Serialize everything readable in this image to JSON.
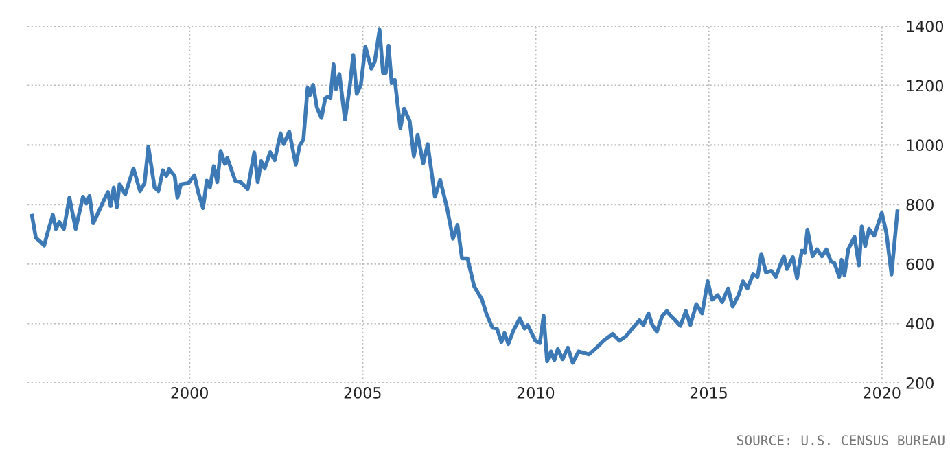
{
  "chart_data": {
    "type": "line",
    "x": [
      1995.45,
      1995.56,
      1995.72,
      1995.8,
      1995.9,
      1996.05,
      1996.14,
      1996.24,
      1996.37,
      1996.53,
      1996.71,
      1996.92,
      1997.02,
      1997.11,
      1997.22,
      1997.48,
      1997.64,
      1997.72,
      1997.81,
      1997.9,
      1997.98,
      1998.14,
      1998.38,
      1998.57,
      1998.7,
      1998.81,
      1998.99,
      1999.1,
      1999.23,
      1999.33,
      1999.41,
      1999.57,
      1999.65,
      1999.75,
      1999.97,
      2000.14,
      2000.25,
      2000.39,
      2000.5,
      2000.59,
      2000.7,
      2000.8,
      2000.9,
      2001.02,
      2001.09,
      2001.32,
      2001.48,
      2001.68,
      2001.87,
      2001.97,
      2002.07,
      2002.17,
      2002.33,
      2002.46,
      2002.63,
      2002.72,
      2002.88,
      2003.07,
      2003.18,
      2003.29,
      2003.41,
      2003.48,
      2003.57,
      2003.68,
      2003.81,
      2003.92,
      2003.99,
      2004.07,
      2004.16,
      2004.23,
      2004.33,
      2004.49,
      2004.62,
      2004.73,
      2004.83,
      2004.95,
      2005.08,
      2005.25,
      2005.35,
      2005.49,
      2005.59,
      2005.67,
      2005.75,
      2005.84,
      2005.93,
      2006.09,
      2006.2,
      2006.36,
      2006.48,
      2006.59,
      2006.75,
      2006.88,
      2007.09,
      2007.24,
      2007.44,
      2007.61,
      2007.74,
      2007.87,
      2008.03,
      2008.22,
      2008.45,
      2008.58,
      2008.75,
      2008.88,
      2009.01,
      2009.1,
      2009.21,
      2009.36,
      2009.54,
      2009.68,
      2009.77,
      2009.99,
      2010.12,
      2010.23,
      2010.33,
      2010.44,
      2010.54,
      2010.64,
      2010.78,
      2010.93,
      2011.07,
      2011.24,
      2011.54,
      2011.8,
      2011.96,
      2012.22,
      2012.42,
      2012.61,
      2012.88,
      2013.0,
      2013.11,
      2013.26,
      2013.37,
      2013.5,
      2013.66,
      2013.79,
      2013.9,
      2014.03,
      2014.18,
      2014.34,
      2014.47,
      2014.64,
      2014.81,
      2014.97,
      2015.1,
      2015.26,
      2015.39,
      2015.56,
      2015.69,
      2015.86,
      2015.99,
      2016.12,
      2016.28,
      2016.41,
      2016.52,
      2016.65,
      2016.81,
      2016.94,
      2017.07,
      2017.17,
      2017.26,
      2017.43,
      2017.55,
      2017.69,
      2017.78,
      2017.85,
      2018.0,
      2018.13,
      2018.27,
      2018.4,
      2018.53,
      2018.63,
      2018.77,
      2018.84,
      2018.92,
      2019.03,
      2019.21,
      2019.34,
      2019.42,
      2019.52,
      2019.63,
      2019.78,
      2020.0,
      2020.13,
      2020.28,
      2020.45
    ],
    "series": [
      {
        "color": "#3d7ab5",
        "values": [
          762,
          688,
          672,
          662,
          706,
          765,
          718,
          741,
          718,
          823,
          718,
          826,
          803,
          829,
          737,
          803,
          842,
          795,
          857,
          791,
          869,
          834,
          921,
          845,
          872,
          995,
          857,
          845,
          915,
          896,
          919,
          896,
          823,
          868,
          872,
          898,
          842,
          788,
          880,
          857,
          929,
          875,
          980,
          937,
          957,
          880,
          875,
          852,
          975,
          875,
          946,
          921,
          976,
          949,
          1039,
          1003,
          1045,
          934,
          998,
          1018,
          1192,
          1168,
          1202,
          1126,
          1091,
          1157,
          1162,
          1157,
          1272,
          1188,
          1238,
          1085,
          1188,
          1303,
          1172,
          1203,
          1331,
          1257,
          1280,
          1388,
          1242,
          1242,
          1334,
          1208,
          1219,
          1057,
          1122,
          1080,
          962,
          1034,
          938,
          1003,
          826,
          883,
          788,
          685,
          731,
          619,
          619,
          526,
          480,
          432,
          386,
          383,
          337,
          368,
          331,
          377,
          417,
          383,
          395,
          342,
          334,
          426,
          273,
          306,
          277,
          314,
          280,
          319,
          268,
          306,
          296,
          323,
          342,
          365,
          342,
          357,
          395,
          411,
          395,
          434,
          395,
          372,
          426,
          442,
          426,
          411,
          392,
          442,
          395,
          465,
          434,
          542,
          480,
          495,
          472,
          518,
          457,
          495,
          542,
          518,
          565,
          557,
          634,
          572,
          577,
          557,
          598,
          626,
          583,
          623,
          552,
          645,
          639,
          716,
          626,
          649,
          626,
          649,
          608,
          603,
          557,
          614,
          562,
          649,
          691,
          595,
          726,
          660,
          718,
          695,
          772,
          706,
          565,
          777
        ]
      }
    ],
    "xlim": [
      1995.32,
      2020.57
    ],
    "ylim": [
      200,
      1400
    ],
    "xticks": [
      2000,
      2005,
      2010,
      2015,
      2020
    ],
    "yticks": [
      200,
      400,
      600,
      800,
      1000,
      1200,
      1400
    ],
    "grid": true,
    "marker": "none",
    "line_style": "solid",
    "annotations": [
      "SOURCE: U.S. CENSUS BUREAU"
    ]
  }
}
